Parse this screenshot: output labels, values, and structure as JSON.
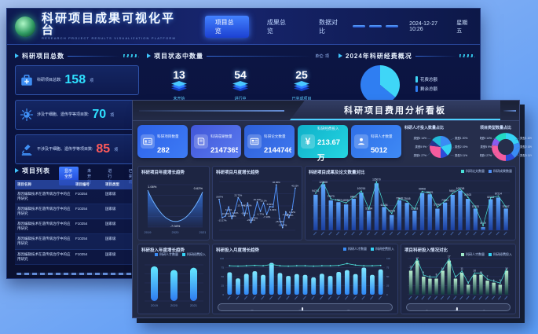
{
  "palette": {
    "accent_cyan": "#3fd0ff",
    "accent_blue": "#2f6ff5",
    "alert_red": "#ff5a5a",
    "teal_card": "#14c0d4"
  },
  "back_dashboard": {
    "title": "科研项目成果可视化平台",
    "subtitle": "RESEARCH PROJECT RESULTS VISUALIZATION PLATFORM",
    "tabs": [
      {
        "label": "项目总览"
      },
      {
        "label": "成果总览"
      },
      {
        "label": "数据对比"
      }
    ],
    "datetime": "2024-12-27 10:26",
    "weekday": "星期五",
    "totals_section": {
      "title": "科研项目总数",
      "cards": [
        {
          "icon": "medkit-icon",
          "label": "科研项目总数:",
          "value": "158",
          "unit": "项",
          "color": "#2ee0ff"
        },
        {
          "icon": "virus-icon",
          "label": "涉及干细胞、遗传学等项目数:",
          "value": "70",
          "unit": "项",
          "color": "#2ee0ff"
        },
        {
          "icon": "microscope-icon",
          "label": "不涉及干细胞、遗传学等项目数:",
          "value": "85",
          "unit": "项",
          "color": "#ff5a5a"
        }
      ]
    },
    "status_section": {
      "title": "项目状态中数量",
      "unit_note": "单位: 项",
      "items": [
        {
          "value": "13",
          "label": "未开始"
        },
        {
          "value": "54",
          "label": "进行中"
        },
        {
          "value": "25",
          "label": "已完成项目"
        }
      ]
    },
    "funding_section": {
      "title": "2024年科研经费概况"
    },
    "project_list": {
      "title": "项目列表",
      "filters": [
        {
          "label": "显示全部"
        },
        {
          "label": "未开始"
        },
        {
          "label": "进行中"
        },
        {
          "label": "已完成"
        }
      ],
      "columns": [
        "项目名称",
        "项目编号",
        "项目类型"
      ],
      "rows": [
        {
          "name": "基因编辑技术在遗传病治疗中的应用研究",
          "code": "F10254",
          "type": "国家级"
        },
        {
          "name": "基因编辑技术在遗传病治疗中的应用研究",
          "code": "F10254",
          "type": "国家级"
        },
        {
          "name": "基因编辑技术在遗传病治疗中的应用研究",
          "code": "F10254",
          "type": "国家级"
        },
        {
          "name": "基因编辑技术在遗传病治疗中的应用研究",
          "code": "F10254",
          "type": "国家级"
        },
        {
          "name": "基因编辑技术在遗传病治疗中的应用研究",
          "code": "F10254",
          "type": "国家级"
        }
      ]
    }
  },
  "front_dashboard": {
    "title": "科研项目费用分析看板",
    "stat_cards": [
      {
        "icon": "id-card-icon",
        "label": "科研项目数量",
        "value": "282"
      },
      {
        "icon": "book-icon",
        "label": "科研成果数量",
        "value": "2147365"
      },
      {
        "icon": "newspaper-icon",
        "label": "科研论文数量",
        "value": "2144746"
      },
      {
        "icon": "yuan-icon",
        "label": "科研经费投入",
        "value": "213.67万"
      },
      {
        "icon": "person-icon",
        "label": "科研人才数量",
        "value": "5012"
      }
    ]
  },
  "chart_data": [
    {
      "id": "funding-pie",
      "type": "pie",
      "labels": [
        "花费总额",
        "剩余总额"
      ],
      "values": [
        36,
        64
      ],
      "colors": [
        "#3fd6f7",
        "#2f7ef2"
      ]
    },
    {
      "id": "talent-pie",
      "type": "pie",
      "title": "科研人才投入数量占比",
      "labels": [
        "类型1 20%",
        "类型2 19%",
        "类型3 11%",
        "类型4 27%",
        "类型5 9%",
        "类型6 14%"
      ],
      "values": [
        20,
        19,
        11,
        27,
        9,
        14
      ],
      "side_labels": true,
      "colors": [
        "#3a8cf5",
        "#35d2f5",
        "#2c4bd8",
        "#f45c9e",
        "#27348f",
        "#22b9d9"
      ]
    },
    {
      "id": "type-pie",
      "type": "pie",
      "title": "项目类型数量占比",
      "donut": true,
      "labels": [
        "类型1 20%",
        "类型2 19%",
        "类型3 11%",
        "类型4 27%",
        "类型5 9%",
        "类型6 14%"
      ],
      "values": [
        20,
        19,
        11,
        27,
        9,
        14
      ],
      "side_labels": true,
      "colors": [
        "#35d2f5",
        "#3a8cf5",
        "#2c4bd8",
        "#f45c9e",
        "#8a5cf0",
        "#22d9c4"
      ]
    },
    {
      "id": "annual-growth",
      "type": "area",
      "title": "科研项目年度增长趋势",
      "x": [
        "2019",
        "2020",
        "2021"
      ],
      "y": [
        1.06,
        -7.04,
        0.62
      ],
      "ylim": [
        -8.5,
        2.5
      ]
    },
    {
      "id": "monthly-growth",
      "type": "line",
      "title": "科研项目月度增长趋势",
      "ylim": [
        -36,
        52
      ],
      "values": [
        19.87,
        -13.27,
        -10.28,
        6.22,
        -14.88,
        0.22,
        22.72,
        13.74,
        -9.81,
        13.42,
        -22.01,
        -8.75,
        15.13,
        -1.77,
        13.1,
        -7.13,
        6.81,
        6.03,
        46.06,
        -15.44,
        -31.07,
        -2.77,
        -13.18,
        1.62,
        40.25
      ]
    },
    {
      "id": "results-bars",
      "type": "bars",
      "title": "科研项目成果及论文数量对比",
      "legend": [
        "科研论文数量",
        "科研成果数量"
      ],
      "legend_colors": [
        "#49e0d6",
        "#4f8ff5"
      ],
      "values": [
        94743,
        122868,
        79673,
        74921,
        68930,
        84061,
        100216,
        52184,
        125070,
        62184,
        40923,
        79948,
        73045,
        52418,
        99408,
        95821,
        57646,
        73981,
        94561,
        105748,
        83923,
        57923,
        8149,
        82703,
        87214,
        57847
      ],
      "ymax": 132000,
      "grad": [
        "#1b3f9f",
        "#5fa8ff"
      ],
      "labels": true,
      "line": true,
      "hatch": true
    },
    {
      "id": "annual-invest",
      "type": "bars",
      "title": "科研投入年度增长趋势",
      "legend": [
        "科研人才数量",
        "科研经费投入"
      ],
      "legend_colors": [
        "#3a8cf5",
        "#35d2f5"
      ],
      "x": [
        "2019",
        "2020",
        "2021"
      ],
      "values": [
        96,
        86,
        92
      ],
      "ymax": 100,
      "grad": [
        "#2f7bf0",
        "#63e8ff"
      ],
      "pill": true
    },
    {
      "id": "monthly-invest",
      "type": "bars",
      "title": "科研投入月度增长趋势",
      "legend": [
        "科研人才数量",
        "科研经费投入"
      ],
      "legend_colors": [
        "#3a8cf5",
        "#35d2f5"
      ],
      "values": [
        62,
        45,
        58,
        65,
        55,
        88,
        60,
        52,
        57,
        55,
        48,
        58,
        52,
        63,
        68,
        57,
        75,
        55,
        70
      ],
      "line_values": [
        80,
        79,
        80,
        81,
        80,
        84,
        80,
        79,
        80,
        80,
        79,
        80,
        80,
        81,
        86,
        82,
        80,
        80,
        81
      ],
      "ymax": 100,
      "grad": [
        "#2e86f5",
        "#7fe8ff"
      ],
      "rounded": true,
      "yticks": true,
      "hatch": true,
      "slider": true
    },
    {
      "id": "invest-compare",
      "type": "bars",
      "title": "项目科研投入情况对比",
      "legend": [
        "科研人才数量",
        "科研经费投入"
      ],
      "legend_colors": [
        "#9fe8c8",
        "#35d2f5"
      ],
      "values": [
        12,
        17,
        9,
        8,
        8,
        12,
        17,
        8,
        11,
        5,
        10,
        10,
        7,
        6,
        5,
        12
      ],
      "ymax": 18,
      "grad": [
        "#123a40",
        "#b8f0d0"
      ],
      "labels": true,
      "line": true,
      "hatch": true,
      "slider": true
    }
  ]
}
